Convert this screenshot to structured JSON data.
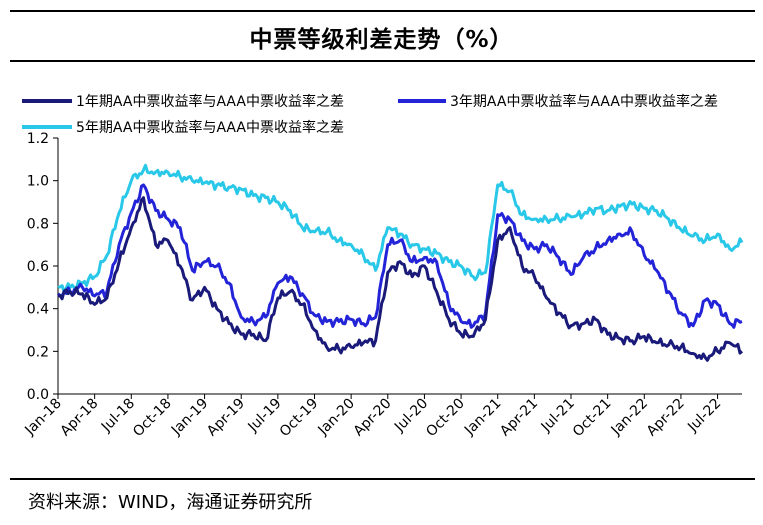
{
  "page_title": "中票等级利差走势（%）",
  "source_note": "资料来源：WIND，海通证券研究所",
  "chart_data": {
    "type": "line",
    "title": "中票等级利差走势（%）",
    "xlabel": "",
    "ylabel": "",
    "ylim": [
      0,
      1.2
    ],
    "yticks": [
      "0.0",
      "0.2",
      "0.4",
      "0.6",
      "0.8",
      "1.0",
      "1.2"
    ],
    "x_tick_labels": [
      "Jan-18",
      "Apr-18",
      "Jul-18",
      "Oct-18",
      "Jan-19",
      "Apr-19",
      "Jul-19",
      "Oct-19",
      "Jan-20",
      "Apr-20",
      "Jul-20",
      "Oct-20",
      "Jan-21",
      "Apr-21",
      "Jul-21",
      "Oct-21",
      "Jan-22",
      "Apr-22",
      "Jul-22"
    ],
    "x": [
      "Jan-18",
      "Feb-18",
      "Mar-18",
      "Apr-18",
      "May-18",
      "Jun-18",
      "Jul-18",
      "Aug-18",
      "Sep-18",
      "Oct-18",
      "Nov-18",
      "Dec-18",
      "Jan-19",
      "Feb-19",
      "Mar-19",
      "Apr-19",
      "May-19",
      "Jun-19",
      "Jul-19",
      "Aug-19",
      "Sep-19",
      "Oct-19",
      "Nov-19",
      "Dec-19",
      "Jan-20",
      "Feb-20",
      "Mar-20",
      "Apr-20",
      "May-20",
      "Jun-20",
      "Jul-20",
      "Aug-20",
      "Sep-20",
      "Oct-20",
      "Nov-20",
      "Dec-20",
      "Jan-21",
      "Feb-21",
      "Mar-21",
      "Apr-21",
      "May-21",
      "Jun-21",
      "Jul-21",
      "Aug-21",
      "Sep-21",
      "Oct-21",
      "Nov-21",
      "Dec-21",
      "Jan-22",
      "Feb-22",
      "Mar-22",
      "Apr-22",
      "May-22",
      "Jun-22",
      "Jul-22",
      "Aug-22",
      "Sep-22"
    ],
    "series": [
      {
        "name": "1年期AA中票收益率与AAA中票收益率之差",
        "color": "#1a1a7a",
        "values": [
          0.46,
          0.48,
          0.47,
          0.42,
          0.45,
          0.62,
          0.78,
          0.92,
          0.7,
          0.72,
          0.6,
          0.44,
          0.5,
          0.4,
          0.33,
          0.28,
          0.28,
          0.25,
          0.45,
          0.48,
          0.42,
          0.3,
          0.22,
          0.21,
          0.22,
          0.24,
          0.25,
          0.57,
          0.62,
          0.55,
          0.6,
          0.48,
          0.35,
          0.28,
          0.27,
          0.35,
          0.72,
          0.78,
          0.6,
          0.55,
          0.45,
          0.38,
          0.32,
          0.33,
          0.35,
          0.28,
          0.26,
          0.25,
          0.27,
          0.24,
          0.23,
          0.22,
          0.19,
          0.17,
          0.2,
          0.24,
          0.2
        ]
      },
      {
        "name": "3年期AA中票收益率与AAA中票收益率之差",
        "color": "#2323d8",
        "values": [
          0.47,
          0.48,
          0.5,
          0.46,
          0.48,
          0.7,
          0.85,
          0.98,
          0.86,
          0.82,
          0.78,
          0.58,
          0.62,
          0.6,
          0.52,
          0.36,
          0.34,
          0.36,
          0.52,
          0.55,
          0.47,
          0.37,
          0.34,
          0.34,
          0.35,
          0.33,
          0.36,
          0.7,
          0.72,
          0.62,
          0.64,
          0.62,
          0.42,
          0.34,
          0.32,
          0.38,
          0.84,
          0.82,
          0.72,
          0.68,
          0.7,
          0.64,
          0.56,
          0.64,
          0.68,
          0.72,
          0.75,
          0.76,
          0.65,
          0.58,
          0.48,
          0.38,
          0.32,
          0.44,
          0.42,
          0.33,
          0.34
        ]
      },
      {
        "name": "5年期AA中票收益率与AAA中票收益率之差",
        "color": "#29c8e8",
        "values": [
          0.5,
          0.5,
          0.52,
          0.55,
          0.65,
          0.85,
          1.0,
          1.05,
          1.04,
          1.04,
          1.02,
          1.0,
          0.99,
          0.98,
          0.97,
          0.96,
          0.93,
          0.92,
          0.9,
          0.86,
          0.78,
          0.76,
          0.76,
          0.72,
          0.7,
          0.65,
          0.58,
          0.78,
          0.75,
          0.7,
          0.68,
          0.66,
          0.62,
          0.6,
          0.55,
          0.57,
          0.98,
          0.95,
          0.84,
          0.82,
          0.82,
          0.82,
          0.83,
          0.84,
          0.87,
          0.86,
          0.88,
          0.89,
          0.87,
          0.86,
          0.82,
          0.77,
          0.74,
          0.72,
          0.75,
          0.68,
          0.71
        ]
      }
    ]
  }
}
